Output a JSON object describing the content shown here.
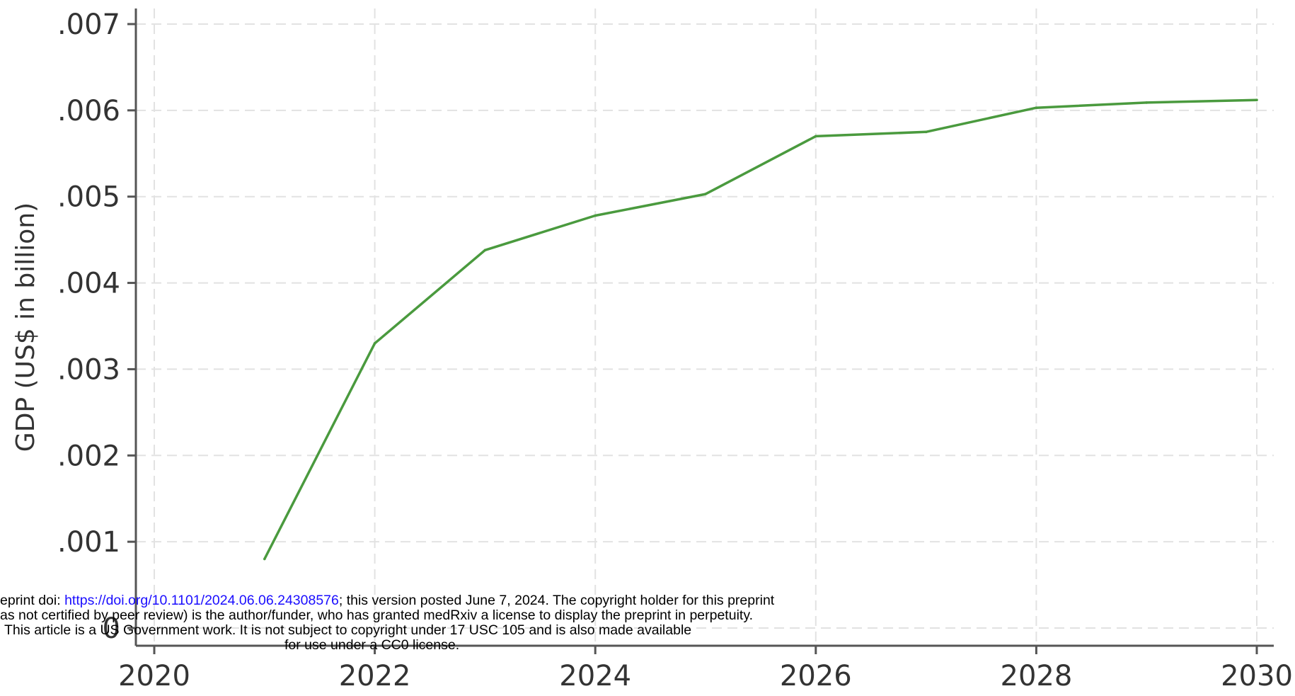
{
  "chart_data": {
    "type": "line",
    "title": "",
    "xlabel": "",
    "ylabel": "GDP (US$ in billion)",
    "xlim": [
      2020,
      2030
    ],
    "ylim": [
      0,
      0.007
    ],
    "x_ticks": [
      2020,
      2022,
      2024,
      2026,
      2028,
      2030
    ],
    "x_tick_labels": [
      "2020",
      "2022",
      "2024",
      "2026",
      "2028",
      "2030"
    ],
    "y_ticks": [
      0,
      0.001,
      0.002,
      0.003,
      0.004,
      0.005,
      0.006,
      0.007
    ],
    "y_tick_labels": [
      "0",
      ".001",
      ".002",
      ".003",
      ".004",
      ".005",
      ".006",
      ".007"
    ],
    "grid": true,
    "series": [
      {
        "color": "#4a9a3e",
        "x": [
          2021,
          2022,
          2023,
          2024,
          2025,
          2026,
          2027,
          2028,
          2029,
          2030
        ],
        "values": [
          0.0008,
          0.0033,
          0.00438,
          0.00478,
          0.00503,
          0.0057,
          0.00575,
          0.00603,
          0.00609,
          0.00612
        ]
      }
    ]
  },
  "watermark": {
    "line1_prefix": "eprint doi: ",
    "line1_link": "https://doi.org/10.1101/2024.06.06.24308576",
    "line1_suffix": "; this version posted June 7, 2024. The copyright holder for this preprint",
    "line2": "as not certified by peer review) is the author/funder, who has granted medRxiv a license to display the preprint in perpetuity.",
    "line3": "This article is a US Government work. It is not subject to copyright under 17 USC 105 and is also made available",
    "line4": "for use under a CC0 license."
  }
}
